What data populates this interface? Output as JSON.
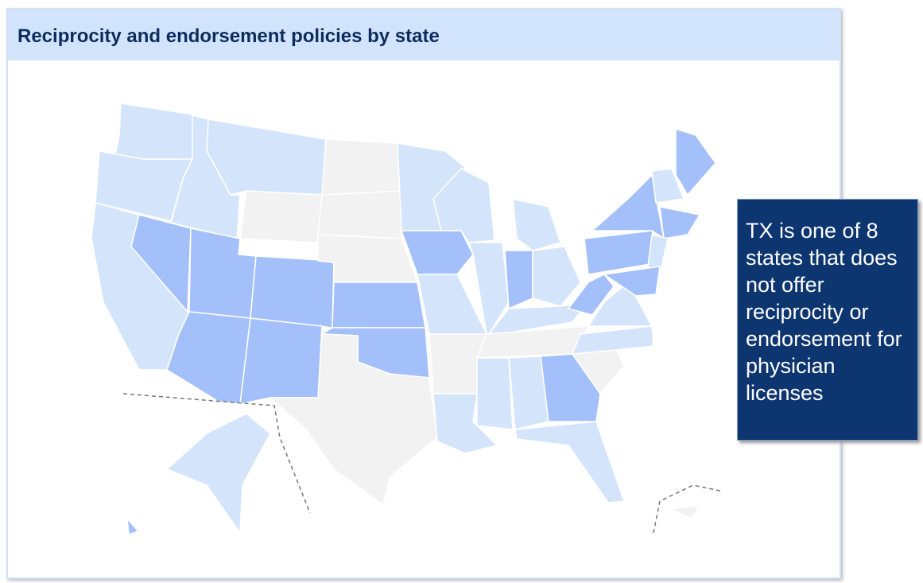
{
  "title": "Reciprocity and endorsement policies by state",
  "callout": "TX is one of 8 states that does not offer reciprocity or endorsement for physician licenses"
}
